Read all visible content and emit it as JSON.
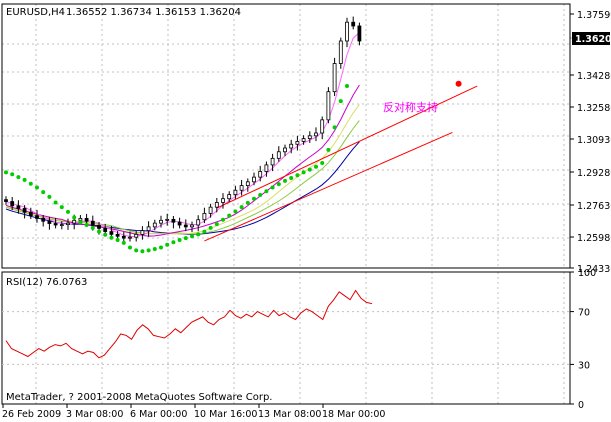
{
  "header": {
    "title": "EURUSD,H4",
    "ohlc": "1.36552 1.36734 1.36153 1.36204"
  },
  "annotation": "反对称支持",
  "copyright": "MetaTrader, ? 2001-2008 MetaQuotes Software Corp.",
  "colors": {
    "background": "#ffffff",
    "grid": "#c0c0c0",
    "candle": "#000000",
    "sar": "#00cc00",
    "channel": "#ff0000",
    "ma_blue": "#0000aa",
    "ma_magenta": "#cc00cc",
    "ma_fast": "#ff66ff",
    "ma_green": "#88cc44",
    "ma_yellow": "#dddd66",
    "rsi": "#dd0000",
    "annotation": "#ff00ff",
    "sar_marker": "#ff0000"
  },
  "chart_data": [
    {
      "type": "candlestick",
      "title": "EURUSD,H4",
      "ylim": [
        1.2411,
        1.3817
      ],
      "price_ticks": [
        "1.37590",
        "1.34280",
        "1.32580",
        "1.30930",
        "1.29280",
        "1.27630",
        "1.25980",
        "1.24330"
      ],
      "current_price": "1.36204",
      "x_tick_labels": [
        "26 Feb 2009",
        "3 Mar 08:00",
        "6 Mar 00:00",
        "10 Mar 16:00",
        "13 Mar 08:00",
        "18 Mar 00:00"
      ],
      "closes": [
        1.2765,
        1.2742,
        1.2728,
        1.2708,
        1.269,
        1.2675,
        1.266,
        1.2648,
        1.264,
        1.2642,
        1.265,
        1.2665,
        1.2675,
        1.266,
        1.2638,
        1.2622,
        1.2605,
        1.259,
        1.258,
        1.257,
        1.2575,
        1.259,
        1.261,
        1.263,
        1.265,
        1.2665,
        1.267,
        1.2655,
        1.264,
        1.263,
        1.264,
        1.2668,
        1.2702,
        1.2735,
        1.276,
        1.278,
        1.2802,
        1.2825,
        1.285,
        1.287,
        1.2895,
        1.2925,
        1.296,
        1.2995,
        1.303,
        1.305,
        1.307,
        1.3085,
        1.31,
        1.3115,
        1.313,
        1.32,
        1.335,
        1.35,
        1.362,
        1.372,
        1.37,
        1.362
      ],
      "sar": [
        1.292,
        1.291,
        1.2895,
        1.288,
        1.286,
        1.284,
        1.2815,
        1.279,
        1.276,
        1.2735,
        1.271,
        1.268,
        1.2655,
        1.264,
        1.2625,
        1.2605,
        1.2588,
        1.2572,
        1.256,
        1.2545,
        1.252,
        1.2505,
        1.25,
        1.2505,
        1.2512,
        1.252,
        1.2535,
        1.2548,
        1.256,
        1.257,
        1.258,
        1.259,
        1.2605,
        1.2625,
        1.2645,
        1.2668,
        1.269,
        1.2712,
        1.2735,
        1.2758,
        1.278,
        1.28,
        1.282,
        1.284,
        1.2858,
        1.2875,
        1.289,
        1.2905,
        1.292,
        1.2935,
        1.295,
        1.297,
        1.304,
        1.316,
        1.33,
        1.338
      ],
      "channel": {
        "lower": {
          "from": [
            32,
            1.2555
          ],
          "to": [
            72,
            1.3133
          ]
        },
        "upper": {
          "from": [
            34,
            1.273
          ],
          "to": [
            76,
            1.338
          ]
        }
      },
      "sar_marker": [
        73,
        1.3392
      ]
    },
    {
      "type": "line",
      "title": "RSI(12) 76.0763",
      "ylim": [
        0,
        100
      ],
      "y_ticks": [
        "100",
        "70",
        "30",
        "0"
      ],
      "values": [
        48,
        42,
        40,
        38,
        36,
        39,
        42,
        40,
        43,
        45,
        44,
        46,
        42,
        40,
        38,
        40,
        39,
        35,
        37,
        42,
        47,
        53,
        52,
        49,
        56,
        60,
        57,
        52,
        51,
        50,
        53,
        57,
        54,
        58,
        62,
        64,
        66,
        62,
        60,
        64,
        66,
        71,
        67,
        65,
        68,
        66,
        70,
        68,
        66,
        71,
        67,
        69,
        66,
        64,
        69,
        72,
        70,
        67,
        64,
        74,
        79,
        85,
        82,
        79,
        86,
        80,
        77,
        76
      ]
    }
  ]
}
